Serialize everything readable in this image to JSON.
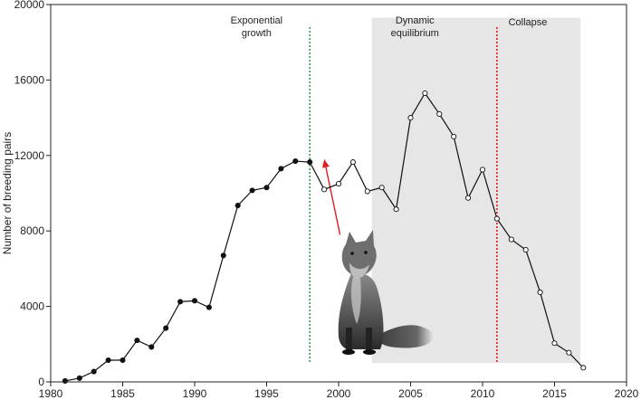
{
  "chart_data": {
    "type": "line",
    "title": "",
    "xlabel": "",
    "ylabel": "Number of breeding pairs",
    "xlim": [
      1980,
      2020
    ],
    "ylim": [
      0,
      20000
    ],
    "xticks": [
      1980,
      1985,
      1990,
      1995,
      2000,
      2005,
      2010,
      2015,
      2020
    ],
    "yticks": [
      0,
      4000,
      8000,
      12000,
      16000,
      20000
    ],
    "grid": false,
    "legend": "none",
    "colors": {
      "line": "#111111",
      "shade": "#e6e6e6",
      "marker_filled": "#111111",
      "marker_open": "#ffffff",
      "line_green": "#2aa84a",
      "line_red": "#e01b24",
      "arrow": "#e01b24"
    },
    "series": [
      {
        "marker": "filled",
        "x": [
          1981,
          1982,
          1983,
          1984,
          1985,
          1986,
          1987,
          1988,
          1989,
          1990,
          1991,
          1992,
          1993,
          1994,
          1995,
          1996,
          1997,
          1998
        ],
        "y": [
          50,
          200,
          550,
          1150,
          1150,
          2200,
          1850,
          2850,
          4250,
          4300,
          3950,
          6700,
          9350,
          10150,
          10300,
          11300,
          11700,
          11650
        ]
      },
      {
        "marker": "open",
        "x": [
          1998,
          1999,
          2000,
          2001,
          2002,
          2003,
          2004,
          2005,
          2006,
          2007,
          2008,
          2009,
          2010,
          2011,
          2012,
          2013,
          2014,
          2015,
          2016,
          2017
        ],
        "y": [
          11650,
          10200,
          10500,
          11650,
          10100,
          10300,
          9150,
          14000,
          15300,
          14200,
          13000,
          9750,
          11250,
          8650,
          7550,
          7000,
          4750,
          2050,
          1550,
          750
        ]
      }
    ],
    "vlines": [
      {
        "x": 1998,
        "color": "green",
        "style": "dotted"
      },
      {
        "x": 2011,
        "color": "red",
        "style": "dotted"
      }
    ],
    "shaded_region": {
      "x0": 2002.3,
      "x1": 2016.8,
      "y0": 1000,
      "y1": 19300
    },
    "annotations": [
      {
        "lines": [
          "Exponential",
          "growth"
        ],
        "x": 1994.3,
        "y": 19000,
        "align": "middle"
      },
      {
        "lines": [
          "Dynamic",
          "equilibrium"
        ],
        "x": 2005.3,
        "y": 19000,
        "align": "middle"
      },
      {
        "lines": [
          "Collapse"
        ],
        "x": 2011.8,
        "y": 18900,
        "align": "start"
      }
    ],
    "arrow": {
      "from": [
        2000.1,
        7800
      ],
      "to": [
        1999.0,
        11800
      ]
    },
    "image": "red-fox-photo"
  }
}
